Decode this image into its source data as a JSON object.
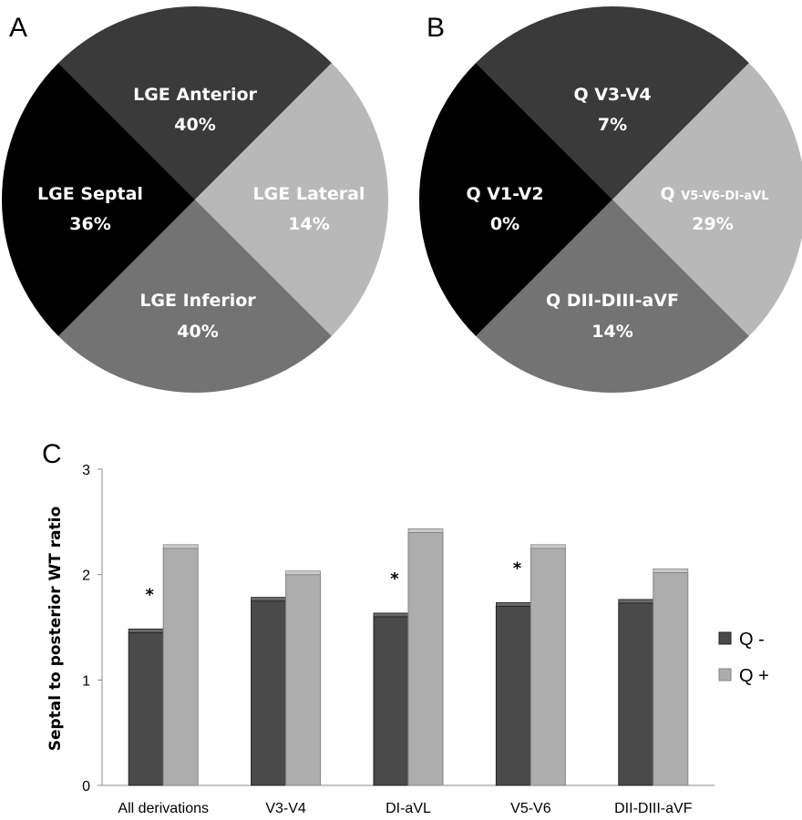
{
  "panels": {
    "a": "A",
    "b": "B",
    "c": "C"
  },
  "chart_data": [
    {
      "type": "pie",
      "title": "",
      "slices": [
        {
          "label": "LGE Anterior",
          "pct": "40%",
          "color": "#3a3a3a"
        },
        {
          "label": "LGE Lateral",
          "pct": "14%",
          "color": "#b8b8b8"
        },
        {
          "label": "LGE Inferior",
          "pct": "40%",
          "color": "#737373"
        },
        {
          "label": "LGE Septal",
          "pct": "36%",
          "color": "#000000"
        }
      ]
    },
    {
      "type": "pie",
      "title": "",
      "slices": [
        {
          "label": "Q V3-V4",
          "pct": "7%",
          "color": "#3a3a3a"
        },
        {
          "label": "Q V5-V6-DI-aVL",
          "label_prefix": "Q",
          "label_suffix": "V5-V6-DI-aVL",
          "pct": "29%",
          "color": "#b8b8b8"
        },
        {
          "label": "Q DII-DIII-aVF",
          "pct": "14%",
          "color": "#737373"
        },
        {
          "label": "Q V1-V2",
          "pct": "0%",
          "color": "#000000"
        }
      ]
    },
    {
      "type": "bar",
      "title": "",
      "xlabel": "",
      "ylabel": "Septal to posterior WT ratio",
      "ylim": [
        0,
        3
      ],
      "yticks": [
        "0",
        "1",
        "2",
        "3"
      ],
      "categories": [
        "All derivations",
        "V3-V4",
        "DI-aVL",
        "V5-V6",
        "DII-DIII-aVF"
      ],
      "series": [
        {
          "name": "Q -",
          "values": [
            1.45,
            1.75,
            1.6,
            1.7,
            1.73
          ],
          "color": "#4a4a4a"
        },
        {
          "name": "Q +",
          "values": [
            2.25,
            2.0,
            2.4,
            2.25,
            2.02
          ],
          "color": "#adadad"
        }
      ],
      "significance_marker": "*",
      "significant": [
        true,
        false,
        true,
        true,
        false
      ],
      "legend": "right"
    }
  ]
}
